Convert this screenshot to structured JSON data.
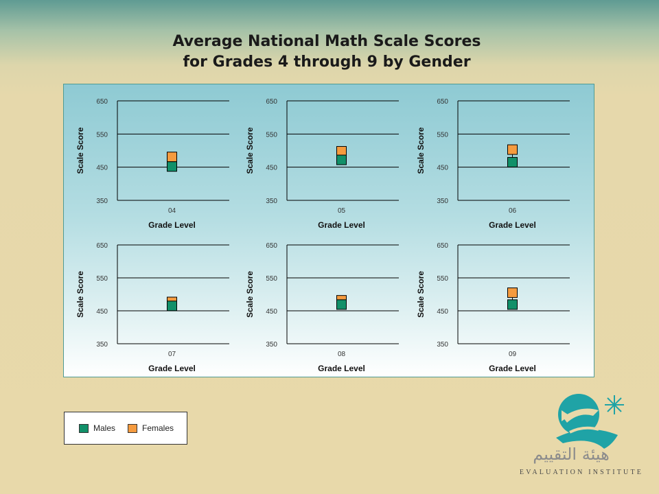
{
  "title_line1": "Average National Math Scale Scores",
  "title_line2": "for Grades 4 through 9 by Gender",
  "colors": {
    "males": "#119069",
    "females": "#f59b3f"
  },
  "legend": {
    "males_label": "Males",
    "females_label": "Females"
  },
  "logo": {
    "arabic_text": "هيئة التقييم",
    "english_text": "EVALUATION INSTITUTE"
  },
  "chart_data": [
    {
      "type": "scatter",
      "xlabel": "Grade Level",
      "ylabel": "Scale Score",
      "categories": [
        "04"
      ],
      "yticks": [
        350,
        450,
        550,
        650
      ],
      "ylim": [
        350,
        650
      ],
      "grid": true,
      "series": [
        {
          "name": "Males",
          "values": [
            452
          ]
        },
        {
          "name": "Females",
          "values": [
            481
          ]
        }
      ]
    },
    {
      "type": "scatter",
      "xlabel": "Grade Level",
      "ylabel": "Scale Score",
      "categories": [
        "05"
      ],
      "yticks": [
        350,
        450,
        550,
        650
      ],
      "ylim": [
        350,
        650
      ],
      "grid": true,
      "series": [
        {
          "name": "Males",
          "values": [
            472
          ]
        },
        {
          "name": "Females",
          "values": [
            498
          ]
        }
      ]
    },
    {
      "type": "scatter",
      "xlabel": "Grade Level",
      "ylabel": "Scale Score",
      "categories": [
        "06"
      ],
      "yticks": [
        350,
        450,
        550,
        650
      ],
      "ylim": [
        350,
        650
      ],
      "grid": true,
      "series": [
        {
          "name": "Males",
          "values": [
            465
          ]
        },
        {
          "name": "Females",
          "values": [
            503
          ]
        }
      ]
    },
    {
      "type": "scatter",
      "xlabel": "Grade Level",
      "ylabel": "Scale Score",
      "categories": [
        "07"
      ],
      "yticks": [
        350,
        450,
        550,
        650
      ],
      "ylim": [
        350,
        650
      ],
      "grid": true,
      "series": [
        {
          "name": "Males",
          "values": [
            465
          ]
        },
        {
          "name": "Females",
          "values": [
            477
          ]
        }
      ]
    },
    {
      "type": "scatter",
      "xlabel": "Grade Level",
      "ylabel": "Scale Score",
      "categories": [
        "08"
      ],
      "yticks": [
        350,
        450,
        550,
        650
      ],
      "ylim": [
        350,
        650
      ],
      "grid": true,
      "series": [
        {
          "name": "Males",
          "values": [
            469
          ]
        },
        {
          "name": "Females",
          "values": [
            482
          ]
        }
      ]
    },
    {
      "type": "scatter",
      "xlabel": "Grade Level",
      "ylabel": "Scale Score",
      "categories": [
        "09"
      ],
      "yticks": [
        350,
        450,
        550,
        650
      ],
      "ylim": [
        350,
        650
      ],
      "grid": true,
      "series": [
        {
          "name": "Males",
          "values": [
            469
          ]
        },
        {
          "name": "Females",
          "values": [
            505
          ]
        }
      ]
    }
  ]
}
